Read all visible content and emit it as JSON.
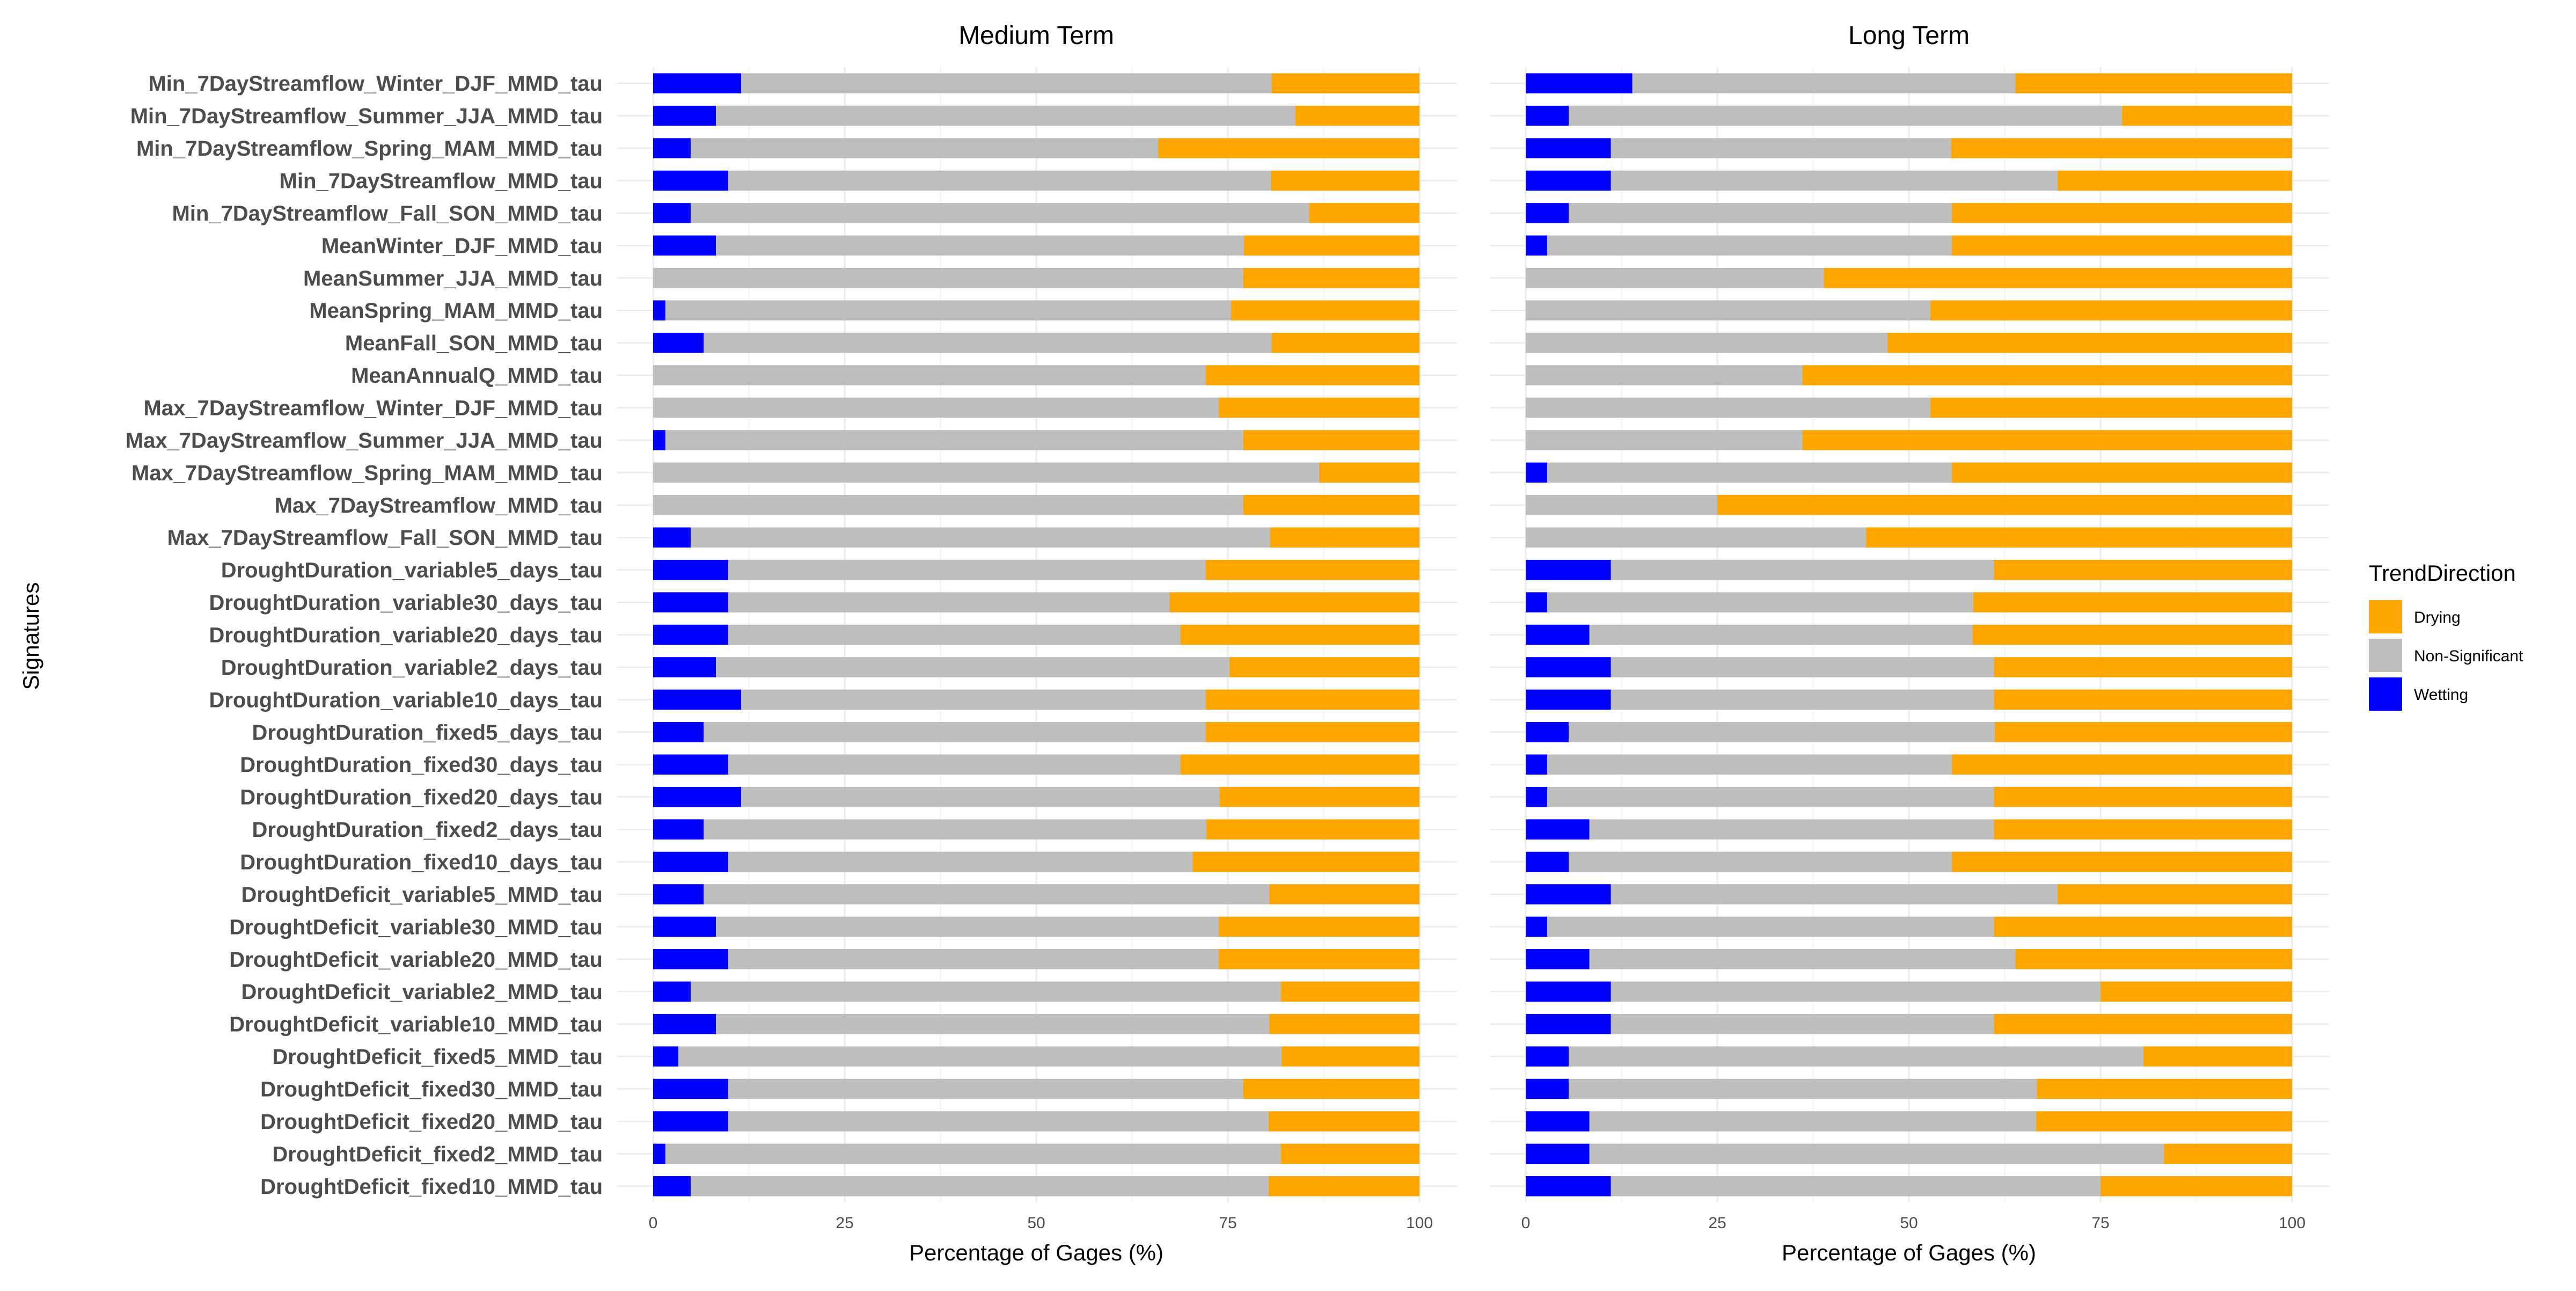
{
  "chart_data": {
    "type": "bar",
    "orientation": "horizontal",
    "stacked": true,
    "ylabel": "Signatures",
    "xlabel": "Percentage of Gages (%)",
    "xlim": [
      0,
      100
    ],
    "xticks": [
      0,
      25,
      50,
      75,
      100
    ],
    "grid": true,
    "legend_position": "right",
    "legend": {
      "title": "TrendDirection",
      "entries": [
        "Drying",
        "Non-Significant",
        "Wetting"
      ]
    },
    "colors": {
      "Wetting": "#0000ff",
      "Non-Significant": "#bebebe",
      "Drying": "#ffa500"
    },
    "categories": [
      "Min_7DayStreamflow_Winter_DJF_MMD_tau",
      "Min_7DayStreamflow_Summer_JJA_MMD_tau",
      "Min_7DayStreamflow_Spring_MAM_MMD_tau",
      "Min_7DayStreamflow_MMD_tau",
      "Min_7DayStreamflow_Fall_SON_MMD_tau",
      "MeanWinter_DJF_MMD_tau",
      "MeanSummer_JJA_MMD_tau",
      "MeanSpring_MAM_MMD_tau",
      "MeanFall_SON_MMD_tau",
      "MeanAnnualQ_MMD_tau",
      "Max_7DayStreamflow_Winter_DJF_MMD_tau",
      "Max_7DayStreamflow_Summer_JJA_MMD_tau",
      "Max_7DayStreamflow_Spring_MAM_MMD_tau",
      "Max_7DayStreamflow_MMD_tau",
      "Max_7DayStreamflow_Fall_SON_MMD_tau",
      "DroughtDuration_variable5_days_tau",
      "DroughtDuration_variable30_days_tau",
      "DroughtDuration_variable20_days_tau",
      "DroughtDuration_variable2_days_tau",
      "DroughtDuration_variable10_days_tau",
      "DroughtDuration_fixed5_days_tau",
      "DroughtDuration_fixed30_days_tau",
      "DroughtDuration_fixed20_days_tau",
      "DroughtDuration_fixed2_days_tau",
      "DroughtDuration_fixed10_days_tau",
      "DroughtDeficit_variable5_MMD_tau",
      "DroughtDeficit_variable30_MMD_tau",
      "DroughtDeficit_variable20_MMD_tau",
      "DroughtDeficit_variable2_MMD_tau",
      "DroughtDeficit_variable10_MMD_tau",
      "DroughtDeficit_fixed5_MMD_tau",
      "DroughtDeficit_fixed30_MMD_tau",
      "DroughtDeficit_fixed20_MMD_tau",
      "DroughtDeficit_fixed2_MMD_tau",
      "DroughtDeficit_fixed10_MMD_tau"
    ],
    "panels": [
      {
        "title": "Medium Term",
        "series": [
          {
            "name": "Wetting",
            "values": [
              11.5,
              8.2,
              4.9,
              9.8,
              4.9,
              8.2,
              0,
              1.6,
              6.6,
              0,
              0,
              1.6,
              0,
              0,
              4.9,
              9.8,
              9.8,
              9.8,
              8.2,
              11.5,
              6.6,
              9.8,
              11.5,
              6.6,
              9.8,
              6.6,
              8.2,
              9.8,
              4.9,
              8.2,
              3.3,
              9.8,
              9.8,
              1.6,
              4.9
            ]
          },
          {
            "name": "Non-Significant",
            "values": [
              69.2,
              75.6,
              61.0,
              70.8,
              80.7,
              68.9,
              77.0,
              73.8,
              74.1,
              72.1,
              73.8,
              75.4,
              86.9,
              77.0,
              75.6,
              62.3,
              57.6,
              59.0,
              67.0,
              60.6,
              65.5,
              59.0,
              62.4,
              65.6,
              60.6,
              73.8,
              65.6,
              64.0,
              77.0,
              72.2,
              78.7,
              67.2,
              70.5,
              80.3,
              75.4
            ]
          },
          {
            "name": "Drying",
            "values": [
              19.3,
              16.2,
              34.1,
              19.4,
              14.4,
              22.9,
              23.0,
              24.6,
              19.3,
              27.9,
              26.2,
              23.0,
              13.1,
              23.0,
              19.5,
              27.9,
              32.6,
              31.2,
              24.8,
              27.9,
              27.9,
              31.2,
              26.1,
              27.8,
              29.6,
              19.6,
              26.2,
              26.2,
              18.1,
              19.6,
              18.0,
              23.0,
              19.7,
              18.1,
              19.7
            ]
          }
        ]
      },
      {
        "title": "Long Term",
        "series": [
          {
            "name": "Wetting",
            "values": [
              13.9,
              5.6,
              11.1,
              11.1,
              5.6,
              2.8,
              0,
              0,
              0,
              0,
              0,
              0,
              2.8,
              0,
              0,
              11.1,
              2.8,
              8.3,
              11.1,
              11.1,
              5.6,
              2.8,
              2.8,
              8.3,
              5.6,
              11.1,
              2.8,
              8.3,
              11.1,
              11.1,
              5.6,
              5.6,
              8.3,
              8.3,
              11.1
            ]
          },
          {
            "name": "Non-Significant",
            "values": [
              50.0,
              72.2,
              44.4,
              58.3,
              50.0,
              52.8,
              38.9,
              52.8,
              47.2,
              36.1,
              52.8,
              36.1,
              52.8,
              25.0,
              44.4,
              50.0,
              55.6,
              50.0,
              50.0,
              50.0,
              55.6,
              52.8,
              58.3,
              52.8,
              50.0,
              58.3,
              58.3,
              55.6,
              63.9,
              50.0,
              75.0,
              61.1,
              58.3,
              75.0,
              63.9
            ]
          },
          {
            "name": "Drying",
            "values": [
              36.1,
              22.2,
              44.5,
              30.6,
              44.4,
              44.4,
              61.1,
              47.2,
              52.8,
              63.9,
              47.2,
              63.9,
              44.4,
              75.0,
              55.6,
              38.9,
              41.6,
              41.7,
              38.9,
              38.9,
              38.8,
              44.4,
              38.9,
              38.9,
              44.4,
              30.6,
              38.9,
              36.1,
              25.0,
              38.9,
              19.4,
              33.3,
              33.4,
              16.7,
              25.0
            ]
          }
        ]
      }
    ]
  }
}
